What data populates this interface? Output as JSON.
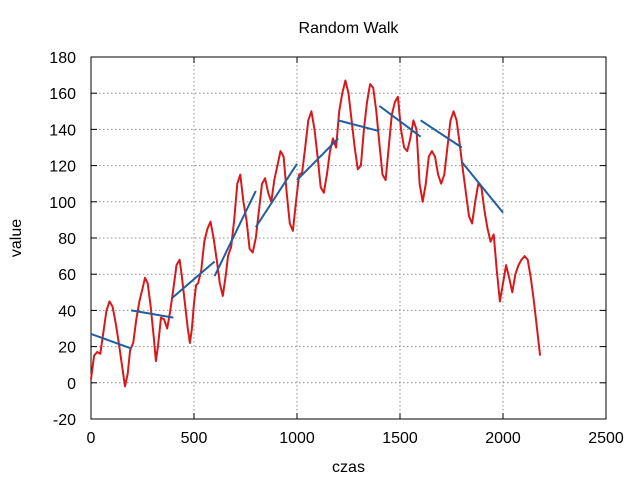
{
  "chart_data": {
    "type": "line",
    "title": "Random Walk",
    "xlabel": "czas",
    "ylabel": "value",
    "xlim": [
      0,
      2500
    ],
    "ylim": [
      -20,
      180
    ],
    "xticks": [
      0,
      500,
      1000,
      1500,
      2000,
      2500
    ],
    "yticks": [
      -20,
      0,
      20,
      40,
      60,
      80,
      100,
      120,
      140,
      160,
      180
    ],
    "grid": true,
    "colors": {
      "walk": "#d7191c",
      "fit": "#1f5fa0"
    },
    "walk": {
      "x": [
        0,
        15,
        30,
        45,
        60,
        75,
        90,
        105,
        120,
        135,
        150,
        165,
        178,
        190,
        205,
        220,
        235,
        250,
        262,
        275,
        290,
        305,
        315,
        325,
        340,
        355,
        370,
        385,
        400,
        415,
        430,
        440,
        455,
        470,
        480,
        490,
        500,
        510,
        520,
        535,
        550,
        565,
        580,
        595,
        610,
        625,
        640,
        655,
        665,
        680,
        695,
        710,
        725,
        740,
        755,
        770,
        785,
        800,
        815,
        830,
        845,
        860,
        875,
        890,
        905,
        920,
        935,
        950,
        965,
        980,
        995,
        1010,
        1025,
        1040,
        1055,
        1070,
        1085,
        1100,
        1115,
        1130,
        1145,
        1160,
        1175,
        1190,
        1205,
        1220,
        1235,
        1250,
        1265,
        1280,
        1295,
        1310,
        1325,
        1340,
        1355,
        1370,
        1385,
        1400,
        1415,
        1430,
        1445,
        1460,
        1475,
        1490,
        1505,
        1520,
        1535,
        1550,
        1565,
        1580,
        1595,
        1610,
        1625,
        1640,
        1655,
        1670,
        1685,
        1700,
        1715,
        1730,
        1745,
        1760,
        1775,
        1790,
        1805,
        1820,
        1835,
        1850,
        1865,
        1880,
        1895,
        1910,
        1925,
        1940,
        1955,
        1970,
        1985,
        2000,
        2015,
        2030,
        2045,
        2060,
        2075,
        2090,
        2105,
        2120,
        2135,
        2150,
        2165,
        2180
      ],
      "y": [
        2,
        15,
        17,
        16,
        28,
        40,
        45,
        42,
        33,
        22,
        10,
        -2,
        5,
        18,
        22,
        35,
        45,
        52,
        58,
        55,
        42,
        25,
        12,
        20,
        36,
        35,
        30,
        40,
        52,
        65,
        68,
        60,
        45,
        30,
        22,
        30,
        44,
        54,
        55,
        62,
        78,
        85,
        89,
        80,
        68,
        55,
        48,
        60,
        70,
        75,
        90,
        110,
        115,
        100,
        90,
        74,
        72,
        80,
        95,
        110,
        113,
        105,
        100,
        112,
        120,
        128,
        125,
        105,
        88,
        84,
        100,
        115,
        116,
        130,
        145,
        150,
        140,
        125,
        108,
        105,
        115,
        128,
        135,
        130,
        150,
        160,
        167,
        160,
        145,
        130,
        118,
        120,
        140,
        155,
        165,
        163,
        150,
        132,
        115,
        112,
        130,
        148,
        155,
        158,
        140,
        130,
        128,
        135,
        145,
        140,
        110,
        100,
        110,
        125,
        128,
        125,
        115,
        110,
        115,
        130,
        145,
        150,
        145,
        132,
        118,
        105,
        92,
        88,
        100,
        110,
        108,
        95,
        85,
        78,
        82,
        62,
        45,
        55,
        65,
        58,
        50,
        60,
        65,
        68,
        70,
        68,
        58,
        45,
        30,
        15
      ],
      "comment": ""
    },
    "fits": [
      {
        "x": [
          0,
          195
        ],
        "y": [
          27,
          19
        ]
      },
      {
        "x": [
          195,
          400
        ],
        "y": [
          40,
          36
        ]
      },
      {
        "x": [
          395,
          600
        ],
        "y": [
          47,
          67
        ]
      },
      {
        "x": [
          600,
          800
        ],
        "y": [
          59,
          106
        ]
      },
      {
        "x": [
          800,
          1000
        ],
        "y": [
          86,
          121
        ]
      },
      {
        "x": [
          1000,
          1200
        ],
        "y": [
          112,
          135
        ]
      },
      {
        "x": [
          1200,
          1400
        ],
        "y": [
          145,
          139
        ]
      },
      {
        "x": [
          1400,
          1600
        ],
        "y": [
          153,
          136
        ]
      },
      {
        "x": [
          1600,
          1800
        ],
        "y": [
          145,
          130
        ]
      },
      {
        "x": [
          1800,
          2000
        ],
        "y": [
          122,
          94
        ]
      }
    ]
  }
}
